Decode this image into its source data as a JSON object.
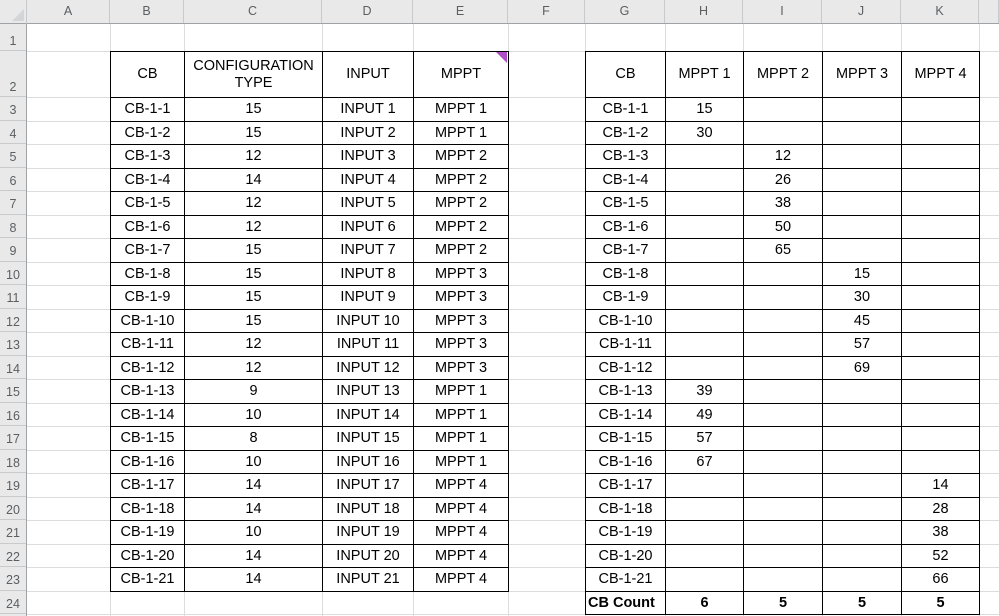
{
  "sheet": {
    "column_headers": [
      "A",
      "B",
      "C",
      "D",
      "E",
      "F",
      "G",
      "H",
      "I",
      "J",
      "K"
    ],
    "row_headers": [
      "1",
      "2",
      "3",
      "4",
      "5",
      "6",
      "7",
      "8",
      "9",
      "10",
      "11",
      "12",
      "13",
      "14",
      "15",
      "16",
      "17",
      "18",
      "19",
      "20",
      "21",
      "22",
      "23",
      "24"
    ]
  },
  "left_table": {
    "headers": [
      "CB",
      "CONFIGURATION TYPE",
      "INPUT",
      "MPPT"
    ],
    "rows": [
      [
        "CB-1-1",
        "15",
        "INPUT 1",
        "MPPT 1"
      ],
      [
        "CB-1-2",
        "15",
        "INPUT 2",
        "MPPT 1"
      ],
      [
        "CB-1-3",
        "12",
        "INPUT 3",
        "MPPT 2"
      ],
      [
        "CB-1-4",
        "14",
        "INPUT 4",
        "MPPT 2"
      ],
      [
        "CB-1-5",
        "12",
        "INPUT 5",
        "MPPT 2"
      ],
      [
        "CB-1-6",
        "12",
        "INPUT 6",
        "MPPT 2"
      ],
      [
        "CB-1-7",
        "15",
        "INPUT 7",
        "MPPT 2"
      ],
      [
        "CB-1-8",
        "15",
        "INPUT 8",
        "MPPT 3"
      ],
      [
        "CB-1-9",
        "15",
        "INPUT 9",
        "MPPT 3"
      ],
      [
        "CB-1-10",
        "15",
        "INPUT 10",
        "MPPT 3"
      ],
      [
        "CB-1-11",
        "12",
        "INPUT 11",
        "MPPT 3"
      ],
      [
        "CB-1-12",
        "12",
        "INPUT 12",
        "MPPT 3"
      ],
      [
        "CB-1-13",
        "9",
        "INPUT 13",
        "MPPT 1"
      ],
      [
        "CB-1-14",
        "10",
        "INPUT 14",
        "MPPT 1"
      ],
      [
        "CB-1-15",
        "8",
        "INPUT 15",
        "MPPT 1"
      ],
      [
        "CB-1-16",
        "10",
        "INPUT 16",
        "MPPT 1"
      ],
      [
        "CB-1-17",
        "14",
        "INPUT 17",
        "MPPT 4"
      ],
      [
        "CB-1-18",
        "14",
        "INPUT 18",
        "MPPT 4"
      ],
      [
        "CB-1-19",
        "10",
        "INPUT 19",
        "MPPT 4"
      ],
      [
        "CB-1-20",
        "14",
        "INPUT 20",
        "MPPT 4"
      ],
      [
        "CB-1-21",
        "14",
        "INPUT 21",
        "MPPT 4"
      ]
    ]
  },
  "right_table": {
    "headers": [
      "CB",
      "MPPT 1",
      "MPPT 2",
      "MPPT 3",
      "MPPT 4"
    ],
    "rows": [
      [
        "CB-1-1",
        "15",
        "",
        "",
        ""
      ],
      [
        "CB-1-2",
        "30",
        "",
        "",
        ""
      ],
      [
        "CB-1-3",
        "",
        "12",
        "",
        ""
      ],
      [
        "CB-1-4",
        "",
        "26",
        "",
        ""
      ],
      [
        "CB-1-5",
        "",
        "38",
        "",
        ""
      ],
      [
        "CB-1-6",
        "",
        "50",
        "",
        ""
      ],
      [
        "CB-1-7",
        "",
        "65",
        "",
        ""
      ],
      [
        "CB-1-8",
        "",
        "",
        "15",
        ""
      ],
      [
        "CB-1-9",
        "",
        "",
        "30",
        ""
      ],
      [
        "CB-1-10",
        "",
        "",
        "45",
        ""
      ],
      [
        "CB-1-11",
        "",
        "",
        "57",
        ""
      ],
      [
        "CB-1-12",
        "",
        "",
        "69",
        ""
      ],
      [
        "CB-1-13",
        "39",
        "",
        "",
        ""
      ],
      [
        "CB-1-14",
        "49",
        "",
        "",
        ""
      ],
      [
        "CB-1-15",
        "57",
        "",
        "",
        ""
      ],
      [
        "CB-1-16",
        "67",
        "",
        "",
        ""
      ],
      [
        "CB-1-17",
        "",
        "",
        "",
        "14"
      ],
      [
        "CB-1-18",
        "",
        "",
        "",
        "28"
      ],
      [
        "CB-1-19",
        "",
        "",
        "",
        "38"
      ],
      [
        "CB-1-20",
        "",
        "",
        "",
        "52"
      ],
      [
        "CB-1-21",
        "",
        "",
        "",
        "66"
      ]
    ],
    "footer": [
      "CB Count",
      "6",
      "5",
      "5",
      "5"
    ]
  },
  "comment_indicator": {
    "cell": "E2",
    "color": "#ae4fc5"
  },
  "colors": {
    "header_bg": "#e9e9e9",
    "header_text": "#5b5f62",
    "header_edge": "#9fa3a6",
    "header_separator": "#c9cacb",
    "grid_line": "#dadcdd",
    "table_border": "#000000",
    "cell_text": "#000000",
    "cell_bg": "#ffffff",
    "select_all_triangle": "#d4d5d7"
  }
}
